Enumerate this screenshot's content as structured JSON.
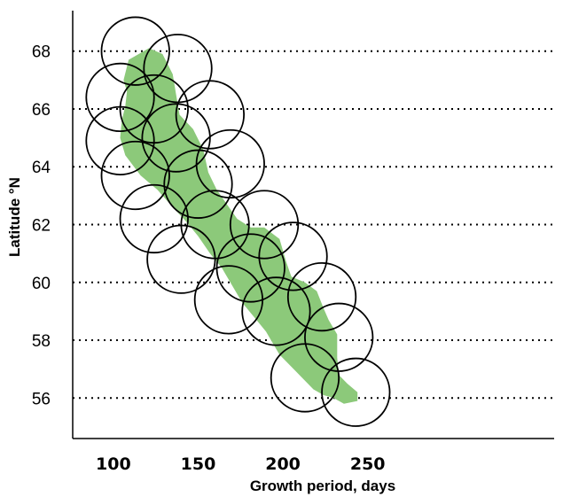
{
  "chart_data": {
    "type": "area",
    "xlabel": "Growth period, days",
    "ylabel": "Latitude °N",
    "xlim": [
      76,
      360
    ],
    "ylim": [
      54.6,
      69.4
    ],
    "x_ticks": [
      100,
      150,
      200,
      250
    ],
    "y_ticks": [
      56,
      58,
      60,
      62,
      64,
      66,
      68
    ],
    "grid": {
      "y": "dotted",
      "x": "none"
    },
    "colors": {
      "region_fill": "#8cc97a",
      "circle_stroke": "#000000",
      "grid": "#000000"
    },
    "region_outline": [
      [
        109,
        67.7
      ],
      [
        121,
        68.1
      ],
      [
        129,
        67.9
      ],
      [
        135,
        67.2
      ],
      [
        137,
        66.5
      ],
      [
        139,
        65.8
      ],
      [
        147,
        65.3
      ],
      [
        153,
        64.6
      ],
      [
        156,
        63.8
      ],
      [
        161,
        63.2
      ],
      [
        167,
        62.7
      ],
      [
        173,
        62.2
      ],
      [
        181,
        61.9
      ],
      [
        189,
        61.9
      ],
      [
        198,
        61.5
      ],
      [
        202,
        60.7
      ],
      [
        205,
        60.2
      ],
      [
        213,
        60.0
      ],
      [
        220,
        59.7
      ],
      [
        224,
        59.1
      ],
      [
        227,
        58.7
      ],
      [
        232,
        58.2
      ],
      [
        232,
        57.4
      ],
      [
        233,
        56.8
      ],
      [
        238,
        56.5
      ],
      [
        244,
        56.2
      ],
      [
        244,
        55.9
      ],
      [
        236,
        55.8
      ],
      [
        230,
        56.0
      ],
      [
        224,
        56.1
      ],
      [
        218,
        56.3
      ],
      [
        208,
        56.9
      ],
      [
        198,
        57.5
      ],
      [
        190,
        58.3
      ],
      [
        183,
        58.8
      ],
      [
        176,
        59.3
      ],
      [
        169,
        60.0
      ],
      [
        164,
        60.5
      ],
      [
        157,
        61.0
      ],
      [
        150,
        61.6
      ],
      [
        143,
        62.1
      ],
      [
        135,
        62.6
      ],
      [
        126,
        63.2
      ],
      [
        116,
        63.7
      ],
      [
        107,
        64.4
      ],
      [
        104,
        65.0
      ],
      [
        105,
        65.6
      ],
      [
        107,
        66.1
      ],
      [
        108,
        66.6
      ],
      [
        106,
        67.0
      ]
    ],
    "circles": [
      [
        113,
        68.0
      ],
      [
        138,
        67.4
      ],
      [
        104,
        66.4
      ],
      [
        124,
        66.0
      ],
      [
        157,
        65.8
      ],
      [
        104,
        64.9
      ],
      [
        137,
        65.0
      ],
      [
        113,
        63.7
      ],
      [
        169,
        64.1
      ],
      [
        150,
        63.4
      ],
      [
        124,
        62.2
      ],
      [
        189,
        62.0
      ],
      [
        160,
        62.0
      ],
      [
        140,
        60.8
      ],
      [
        206,
        60.9
      ],
      [
        181,
        60.5
      ],
      [
        168,
        59.4
      ],
      [
        223,
        59.5
      ],
      [
        196,
        59.0
      ],
      [
        233,
        58.1
      ],
      [
        213,
        56.7
      ],
      [
        243,
        56.2
      ]
    ],
    "circle_radius_days": 20
  }
}
